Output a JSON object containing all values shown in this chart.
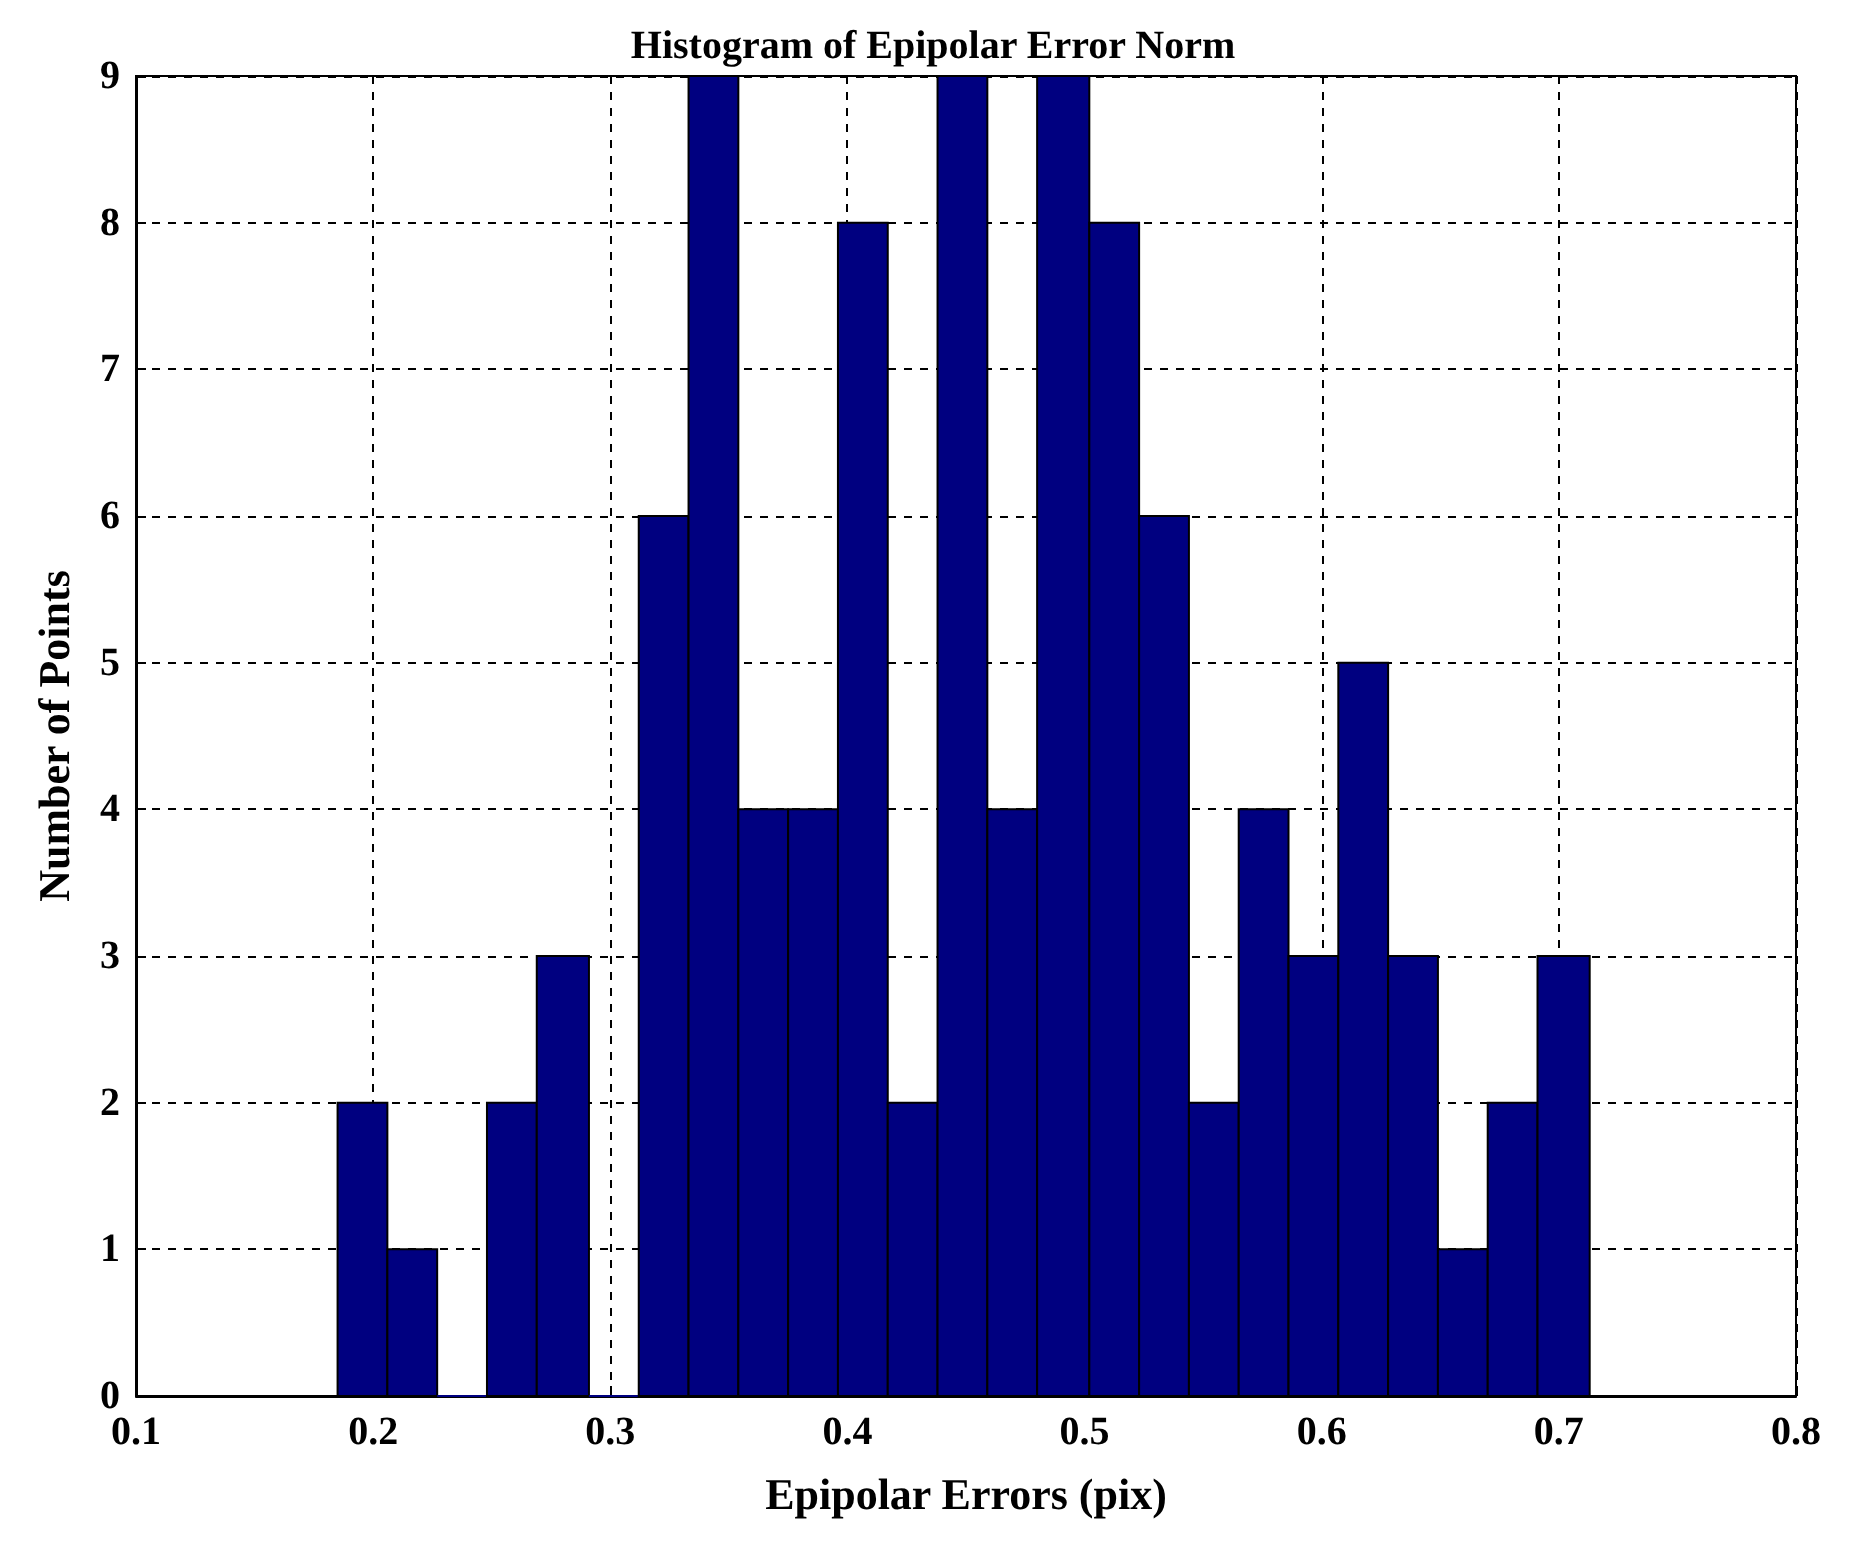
{
  "chart_data": {
    "type": "histogram",
    "title": "Histogram of Epipolar Error Norm",
    "xlabel": "Epipolar Errors (pix)",
    "ylabel": "Number of Points",
    "bins": [
      0.185,
      0.206,
      0.227,
      0.248,
      0.269,
      0.291,
      0.312,
      0.333,
      0.354,
      0.375,
      0.396,
      0.417,
      0.438,
      0.459,
      0.48,
      0.502,
      0.523,
      0.544,
      0.565,
      0.586,
      0.607,
      0.628,
      0.649,
      0.67,
      0.691,
      0.713
    ],
    "values": [
      2,
      1,
      0,
      2,
      3,
      0,
      6,
      9,
      4,
      4,
      8,
      2,
      9,
      4,
      9,
      8,
      6,
      2,
      4,
      3,
      5,
      3,
      1,
      2,
      3
    ],
    "color": "#000080",
    "xlim": [
      0.1,
      0.8
    ],
    "xticks": [
      0.1,
      0.2,
      0.3,
      0.4,
      0.5,
      0.6,
      0.7,
      0.8
    ],
    "ylim": [
      0,
      9
    ],
    "yticks": [
      0,
      1,
      2,
      3,
      4,
      5,
      6,
      7,
      8,
      9
    ],
    "grid": true
  }
}
